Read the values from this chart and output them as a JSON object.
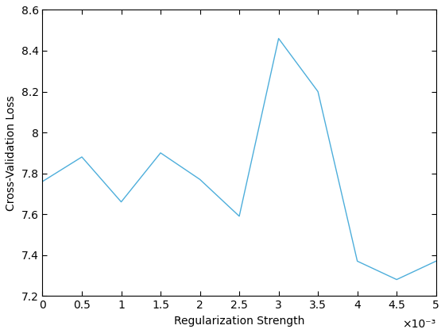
{
  "x": [
    0,
    0.0005,
    0.001,
    0.0015,
    0.002,
    0.0025,
    0.003,
    0.0035,
    0.004,
    0.0045,
    0.005
  ],
  "y": [
    7.76,
    7.88,
    7.66,
    7.9,
    7.77,
    7.59,
    8.46,
    8.2,
    7.37,
    7.28,
    7.37
  ],
  "line_color": "#4daedb",
  "line_width": 1.0,
  "xlabel": "Regularization Strength",
  "ylabel": "Cross-Validation Loss",
  "xlim": [
    0,
    0.005
  ],
  "ylim": [
    7.2,
    8.6
  ],
  "xtick_labels": [
    "0",
    "0.5",
    "1",
    "1.5",
    "2",
    "2.5",
    "3",
    "3.5",
    "4",
    "4.5",
    "5"
  ],
  "xtick_values": [
    0,
    0.0005,
    0.001,
    0.0015,
    0.002,
    0.0025,
    0.003,
    0.0035,
    0.004,
    0.0045,
    0.005
  ],
  "ytick_values": [
    7.2,
    7.4,
    7.6,
    7.8,
    8.0,
    8.2,
    8.4,
    8.6
  ],
  "ytick_labels": [
    "7.2",
    "7.4",
    "7.6",
    "7.8",
    "8",
    "8.2",
    "8.4",
    "8.6"
  ],
  "xlabel_fontsize": 10,
  "ylabel_fontsize": 10,
  "tick_fontsize": 10,
  "offset_text": "×10⁻³",
  "figsize": [
    5.6,
    4.2
  ],
  "dpi": 100
}
